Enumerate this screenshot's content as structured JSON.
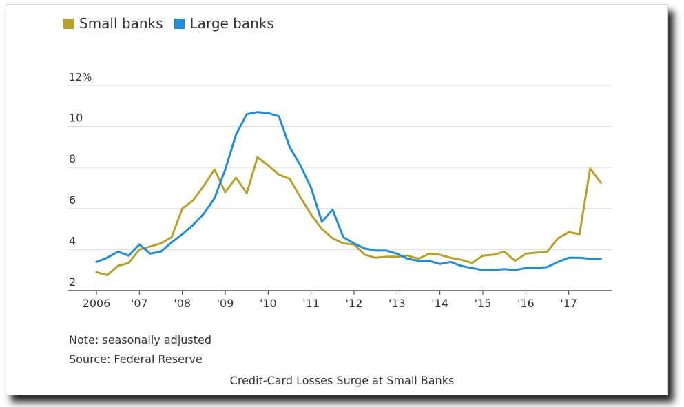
{
  "colors": {
    "small": "#B8A126",
    "large": "#1E8EDB",
    "grid": "#dddddd",
    "axis": "#333333"
  },
  "legend": [
    {
      "label": "Small banks",
      "color": "#B8A126"
    },
    {
      "label": "Large banks",
      "color": "#1E8EDB"
    }
  ],
  "notes": {
    "note": "Note: seasonally adjusted",
    "source": "Source: Federal Reserve"
  },
  "caption": "Credit-Card Losses Surge at Small Banks",
  "chart_data": {
    "type": "line",
    "y_unit": "%",
    "ylim": [
      2,
      12
    ],
    "y_ticks": [
      {
        "value": 12,
        "label": "12%"
      },
      {
        "value": 10,
        "label": "10"
      },
      {
        "value": 8,
        "label": "8"
      },
      {
        "value": 6,
        "label": "6"
      },
      {
        "value": 4,
        "label": "4"
      },
      {
        "value": 2,
        "label": "2"
      }
    ],
    "xlim": [
      2006.0,
      2018.0
    ],
    "x_ticks": [
      {
        "value": 2006,
        "label": "2006"
      },
      {
        "value": 2007,
        "label": "'07"
      },
      {
        "value": 2008,
        "label": "'08"
      },
      {
        "value": 2009,
        "label": "'09"
      },
      {
        "value": 2010,
        "label": "'10"
      },
      {
        "value": 2011,
        "label": "'11"
      },
      {
        "value": 2012,
        "label": "'12"
      },
      {
        "value": 2013,
        "label": "'13"
      },
      {
        "value": 2014,
        "label": "'14"
      },
      {
        "value": 2015,
        "label": "'15"
      },
      {
        "value": 2016,
        "label": "'16"
      },
      {
        "value": 2017,
        "label": "'17"
      }
    ],
    "grid": true,
    "legend_position": "top-left",
    "series": [
      {
        "name": "Small banks",
        "color": "#B8A126",
        "x": [
          2006.0,
          2006.25,
          2006.5,
          2006.75,
          2007.0,
          2007.25,
          2007.5,
          2007.75,
          2008.0,
          2008.25,
          2008.5,
          2008.75,
          2009.0,
          2009.25,
          2009.5,
          2009.75,
          2010.0,
          2010.25,
          2010.5,
          2010.75,
          2011.0,
          2011.25,
          2011.5,
          2011.75,
          2012.0,
          2012.25,
          2012.5,
          2012.75,
          2013.0,
          2013.25,
          2013.5,
          2013.75,
          2014.0,
          2014.25,
          2014.5,
          2014.75,
          2015.0,
          2015.25,
          2015.5,
          2015.75,
          2016.0,
          2016.25,
          2016.5,
          2016.75,
          2017.0,
          2017.25,
          2017.5,
          2017.75
        ],
        "y": [
          2.9,
          2.75,
          3.2,
          3.35,
          4.0,
          4.15,
          4.3,
          4.6,
          6.0,
          6.4,
          7.1,
          7.9,
          6.8,
          7.5,
          6.75,
          8.5,
          8.1,
          7.65,
          7.45,
          6.55,
          5.7,
          5.0,
          4.55,
          4.3,
          4.25,
          3.75,
          3.6,
          3.65,
          3.65,
          3.7,
          3.55,
          3.8,
          3.75,
          3.6,
          3.5,
          3.35,
          3.7,
          3.75,
          3.9,
          3.45,
          3.8,
          3.85,
          3.9,
          4.55,
          4.85,
          4.75,
          7.95,
          7.25
        ]
      },
      {
        "name": "Large banks",
        "color": "#1E8EDB",
        "x": [
          2006.0,
          2006.25,
          2006.5,
          2006.75,
          2007.0,
          2007.25,
          2007.5,
          2007.75,
          2008.0,
          2008.25,
          2008.5,
          2008.75,
          2009.0,
          2009.25,
          2009.5,
          2009.75,
          2010.0,
          2010.25,
          2010.5,
          2010.75,
          2011.0,
          2011.25,
          2011.5,
          2011.75,
          2012.0,
          2012.25,
          2012.5,
          2012.75,
          2013.0,
          2013.25,
          2013.5,
          2013.75,
          2014.0,
          2014.25,
          2014.5,
          2014.75,
          2015.0,
          2015.25,
          2015.5,
          2015.75,
          2016.0,
          2016.25,
          2016.5,
          2016.75,
          2017.0,
          2017.25,
          2017.5,
          2017.75
        ],
        "y": [
          3.4,
          3.6,
          3.9,
          3.7,
          4.25,
          3.8,
          3.9,
          4.35,
          4.75,
          5.2,
          5.75,
          6.5,
          7.9,
          9.6,
          10.6,
          10.7,
          10.65,
          10.5,
          9.0,
          8.1,
          7.0,
          5.35,
          5.95,
          4.6,
          4.3,
          4.05,
          3.95,
          3.95,
          3.8,
          3.55,
          3.45,
          3.45,
          3.3,
          3.4,
          3.2,
          3.1,
          3.0,
          3.0,
          3.05,
          3.0,
          3.1,
          3.1,
          3.15,
          3.4,
          3.6,
          3.6,
          3.55,
          3.55
        ]
      }
    ]
  }
}
